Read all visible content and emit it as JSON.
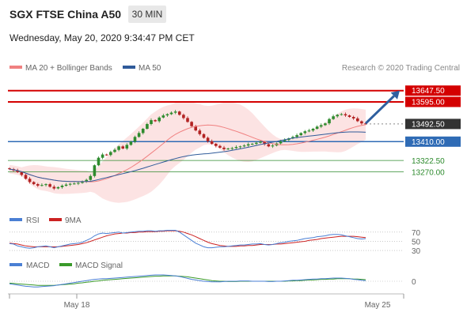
{
  "header": {
    "title": "SGX FTSE China A50",
    "timeframe": "30 MIN",
    "datetime": "Wednesday, May 20, 2020 9:34:47 PM CET"
  },
  "colors": {
    "resistance": "#d40000",
    "pivot": "#2f6bb5",
    "support": "#2e8b2e",
    "current": "#333333",
    "ma20": "#f08080",
    "bollinger_fill": "#fbdcdc",
    "ma50": "#2f5b9a",
    "arrow": "#2f5f9f",
    "up_candle": "#2e8b2e",
    "down_candle": "#b22222",
    "rsi": "#4a7fd4",
    "rsi_ma": "#cc2222",
    "macd": "#4a7fd4",
    "macd_signal": "#3a9a2a"
  },
  "chart_data": [
    {
      "type": "candlestick",
      "legend": [
        {
          "label": "MA 20 + Bollinger Bands",
          "color": "#f08080"
        },
        {
          "label": "MA 50",
          "color": "#2f5b9a"
        }
      ],
      "credit": "Research © 2020 Trading Central",
      "ylim": [
        13150,
        13720
      ],
      "levels": [
        {
          "label": "13647.50",
          "value": 13647.5,
          "role": "resistance"
        },
        {
          "label": "13595.00",
          "value": 13595.0,
          "role": "resistance"
        },
        {
          "label": "13492.50",
          "value": 13492.5,
          "role": "current"
        },
        {
          "label": "13410.00",
          "value": 13410.0,
          "role": "pivot"
        },
        {
          "label": "13322.50",
          "value": 13322.5,
          "role": "support"
        },
        {
          "label": "13270.00",
          "value": 13270.0,
          "role": "support"
        }
      ],
      "close": [
        13282,
        13276,
        13268,
        13255,
        13237,
        13222,
        13212,
        13205,
        13208,
        13212,
        13200,
        13192,
        13198,
        13205,
        13210,
        13214,
        13215,
        13218,
        13225,
        13232,
        13250,
        13300,
        13335,
        13350,
        13348,
        13362,
        13372,
        13388,
        13378,
        13395,
        13410,
        13432,
        13450,
        13470,
        13492,
        13510,
        13505,
        13522,
        13532,
        13538,
        13545,
        13550,
        13535,
        13520,
        13502,
        13482,
        13462,
        13445,
        13428,
        13412,
        13400,
        13390,
        13382,
        13375,
        13378,
        13380,
        13385,
        13388,
        13392,
        13398,
        13400,
        13405,
        13410,
        13398,
        13388,
        13392,
        13402,
        13412,
        13418,
        13425,
        13432,
        13440,
        13450,
        13458,
        13462,
        13470,
        13480,
        13487,
        13495,
        13515,
        13528,
        13535,
        13538,
        13532,
        13525,
        13518,
        13505,
        13495,
        13492
      ],
      "arrow": {
        "from_index": 88,
        "from_value": 13495,
        "to_value": 13648
      }
    },
    {
      "type": "line",
      "title": "RSI",
      "series": [
        {
          "name": "RSI"
        },
        {
          "name": "9MA"
        }
      ],
      "ylim": [
        25,
        80
      ],
      "ticks": [
        "70",
        "50",
        "30"
      ],
      "rsi": [
        45,
        44,
        40,
        38,
        36,
        35,
        36,
        38,
        39,
        40,
        38,
        36,
        38,
        40,
        42,
        44,
        45,
        46,
        48,
        52,
        56,
        62,
        66,
        68,
        67,
        68,
        69,
        70,
        68,
        69,
        70,
        71,
        72,
        72,
        73,
        73,
        72,
        73,
        73,
        74,
        74,
        74,
        70,
        64,
        58,
        52,
        46,
        42,
        38,
        36,
        36,
        37,
        38,
        38,
        39,
        40,
        41,
        42,
        42,
        43,
        44,
        44,
        45,
        43,
        42,
        43,
        45,
        47,
        48,
        50,
        51,
        52,
        54,
        56,
        57,
        58,
        60,
        61,
        62,
        64,
        65,
        65,
        64,
        62,
        60,
        58,
        56,
        55,
        56
      ],
      "rsi_ma": [
        46,
        45,
        44,
        42,
        40,
        39,
        38,
        38,
        38,
        38,
        38,
        38,
        38,
        39,
        40,
        41,
        42,
        43,
        45,
        47,
        50,
        53,
        56,
        59,
        62,
        64,
        66,
        67,
        68,
        68,
        69,
        69,
        70,
        70,
        71,
        71,
        71,
        72,
        72,
        73,
        73,
        73,
        72,
        70,
        67,
        64,
        60,
        56,
        52,
        48,
        45,
        43,
        41,
        40,
        39,
        39,
        39,
        40,
        40,
        41,
        41,
        42,
        43,
        43,
        43,
        43,
        44,
        44,
        45,
        46,
        47,
        48,
        49,
        50,
        52,
        53,
        54,
        56,
        57,
        58,
        59,
        60,
        61,
        61,
        61,
        61,
        60,
        59,
        58
      ]
    },
    {
      "type": "line",
      "title": "MACD",
      "series": [
        {
          "name": "MACD"
        },
        {
          "name": "MACD Signal"
        }
      ],
      "ylim": [
        -30,
        30
      ],
      "ticks": [
        "0"
      ],
      "macd": [
        -8,
        -10,
        -12,
        -14,
        -16,
        -17,
        -18,
        -18,
        -17,
        -16,
        -15,
        -14,
        -12,
        -10,
        -8,
        -6,
        -4,
        -2,
        0,
        2,
        4,
        6,
        7,
        8,
        8,
        9,
        10,
        11,
        12,
        13,
        14,
        15,
        16,
        17,
        18,
        19,
        20,
        20,
        20,
        19,
        18,
        17,
        15,
        12,
        9,
        6,
        4,
        2,
        0,
        -1,
        -2,
        -2,
        -2,
        -1,
        0,
        0,
        0,
        1,
        1,
        1,
        0,
        0,
        0,
        0,
        -1,
        -1,
        0,
        0,
        1,
        2,
        3,
        3,
        4,
        5,
        6,
        7,
        7,
        8,
        8,
        9,
        10,
        10,
        10,
        9,
        8,
        6,
        5,
        3,
        2
      ],
      "macd_signal": [
        -6,
        -7,
        -8,
        -9,
        -10,
        -11,
        -12,
        -13,
        -13,
        -13,
        -13,
        -13,
        -12,
        -11,
        -10,
        -9,
        -8,
        -6,
        -5,
        -3,
        -2,
        0,
        1,
        3,
        4,
        5,
        6,
        7,
        8,
        9,
        10,
        11,
        12,
        13,
        14,
        15,
        16,
        16,
        17,
        17,
        17,
        17,
        16,
        15,
        14,
        12,
        10,
        8,
        6,
        4,
        2,
        1,
        0,
        0,
        -1,
        -1,
        -1,
        0,
        0,
        0,
        0,
        0,
        0,
        0,
        0,
        0,
        0,
        0,
        0,
        1,
        1,
        2,
        2,
        3,
        4,
        4,
        5,
        6,
        6,
        7,
        7,
        8,
        8,
        8,
        8,
        7,
        7,
        6,
        5
      ]
    }
  ],
  "xaxis": {
    "labels": [
      "May 18",
      "May 25"
    ]
  }
}
